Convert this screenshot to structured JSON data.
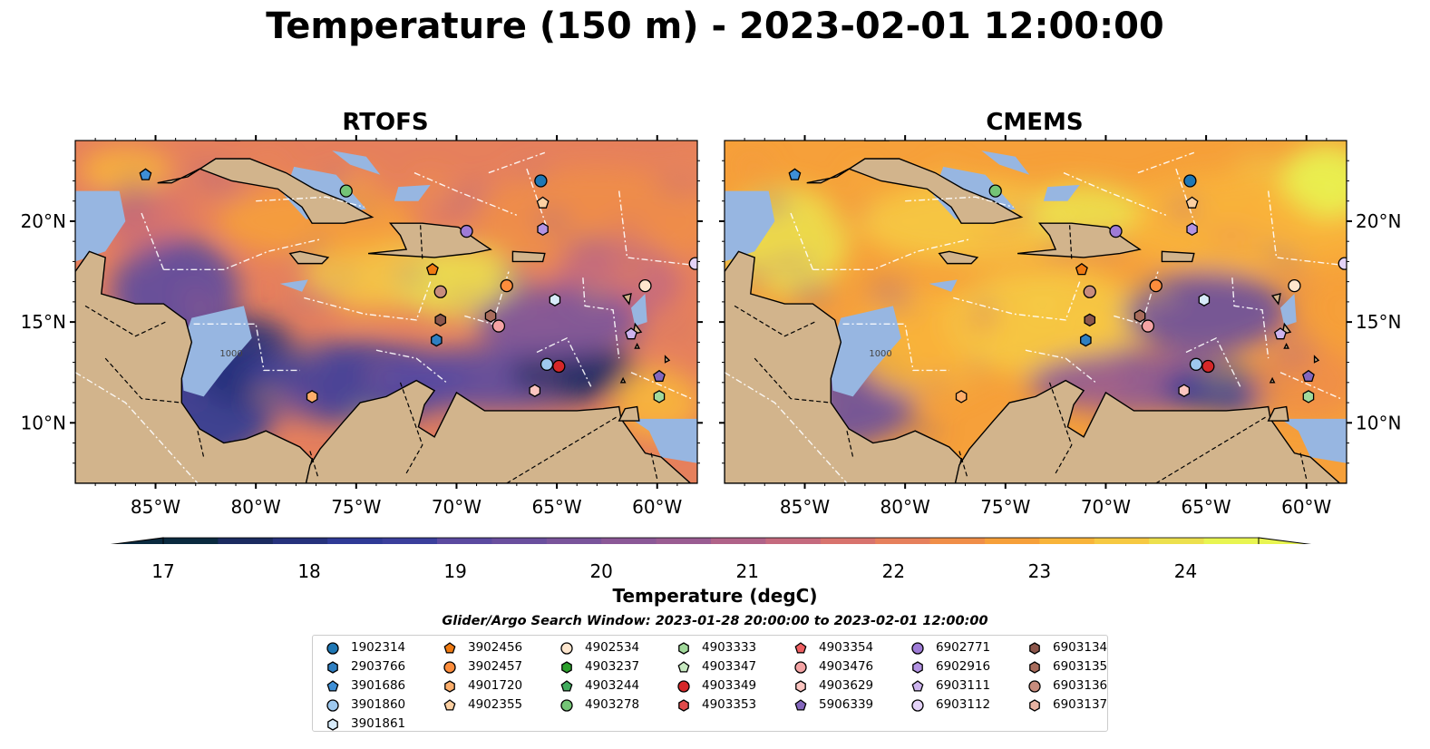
{
  "title": "Temperature (150 m) - 2023-02-01 12:00:00",
  "panels": [
    {
      "title": "RTOFS",
      "side": "left"
    },
    {
      "title": "CMEMS",
      "side": "right"
    }
  ],
  "map": {
    "lon_range": [
      -89,
      -58
    ],
    "lat_range": [
      7,
      24
    ],
    "lon_ticks": [
      "85°W",
      "80°W",
      "75°W",
      "70°W",
      "65°W",
      "60°W"
    ],
    "lat_ticks": [
      "20°N",
      "15°N",
      "10°N"
    ],
    "contour_label": "1000",
    "colors": {
      "land": "#d2b48c",
      "shelf": "#97b6e1",
      "eez_lines": "#ffffff",
      "borders": "#000000"
    }
  },
  "colorbar": {
    "label": "Temperature (degC)",
    "min": 17,
    "max": 24.5,
    "ticks": [
      "17",
      "18",
      "19",
      "20",
      "21",
      "22",
      "23",
      "24"
    ],
    "extend": "both",
    "colors": [
      "#0a2a3f",
      "#1b2b60",
      "#26327c",
      "#2f3a96",
      "#3b3f9c",
      "#5b4aa0",
      "#6a4f9e",
      "#7a549b",
      "#8b5897",
      "#9a5c92",
      "#b06288",
      "#c56a7e",
      "#d8736d",
      "#e6805c",
      "#f08e48",
      "#f6a03a",
      "#f8b43a",
      "#f6c942",
      "#ece04e",
      "#e8f551"
    ]
  },
  "search_window": "Glider/Argo Search Window: 2023-01-28 20:00:00 to 2023-02-01 12:00:00",
  "legend": [
    {
      "label": "1902314",
      "marker": "circle",
      "color": "#1f77b4"
    },
    {
      "label": "2903766",
      "marker": "hexagon",
      "color": "#2f7fc1"
    },
    {
      "label": "3901686",
      "marker": "pentagon",
      "color": "#3e8fd6"
    },
    {
      "label": "3901860",
      "marker": "circle",
      "color": "#9ec9ef"
    },
    {
      "label": "3901861",
      "marker": "hexagon",
      "color": "#d7ebfa"
    },
    {
      "label": "3902456",
      "marker": "pentagon",
      "color": "#ef7a12"
    },
    {
      "label": "3902457",
      "marker": "circle",
      "color": "#fd8d3c"
    },
    {
      "label": "4901720",
      "marker": "hexagon",
      "color": "#fdae6b"
    },
    {
      "label": "4902355",
      "marker": "pentagon",
      "color": "#fdd0a2"
    },
    {
      "label": "4902534",
      "marker": "circle",
      "color": "#fee6ce"
    },
    {
      "label": "4903237",
      "marker": "hexagon",
      "color": "#2ca02c"
    },
    {
      "label": "4903244",
      "marker": "pentagon",
      "color": "#41ab5d"
    },
    {
      "label": "4903278",
      "marker": "circle",
      "color": "#74c476"
    },
    {
      "label": "4903333",
      "marker": "hexagon",
      "color": "#a1d99b"
    },
    {
      "label": "4903347",
      "marker": "pentagon",
      "color": "#c7e9c0"
    },
    {
      "label": "4903349",
      "marker": "circle",
      "color": "#d62728"
    },
    {
      "label": "4903353",
      "marker": "hexagon",
      "color": "#e04a4a"
    },
    {
      "label": "4903354",
      "marker": "pentagon",
      "color": "#ef5f62"
    },
    {
      "label": "4903476",
      "marker": "circle",
      "color": "#f4a3a4"
    },
    {
      "label": "4903629",
      "marker": "hexagon",
      "color": "#fcc5c0"
    },
    {
      "label": "5906339",
      "marker": "pentagon",
      "color": "#8467bd"
    },
    {
      "label": "6902771",
      "marker": "circle",
      "color": "#9e7bd6"
    },
    {
      "label": "6902916",
      "marker": "hexagon",
      "color": "#b393e3"
    },
    {
      "label": "6903111",
      "marker": "pentagon",
      "color": "#cdb4ee"
    },
    {
      "label": "6903112",
      "marker": "circle",
      "color": "#e4d3f8"
    },
    {
      "label": "6903134",
      "marker": "hexagon",
      "color": "#8c564b"
    },
    {
      "label": "6903135",
      "marker": "hexagon",
      "color": "#a86c5c"
    },
    {
      "label": "6903136",
      "marker": "circle",
      "color": "#c88c7d"
    },
    {
      "label": "6903137",
      "marker": "hexagon",
      "color": "#e8b3a3"
    }
  ],
  "floats": [
    {
      "id": "1902314",
      "lon": -65.8,
      "lat": 22.0
    },
    {
      "id": "2903766",
      "lon": -71.0,
      "lat": 14.1
    },
    {
      "id": "3901686",
      "lon": -85.5,
      "lat": 22.3
    },
    {
      "id": "3901860",
      "lon": -65.5,
      "lat": 12.9
    },
    {
      "id": "3901861",
      "lon": -65.1,
      "lat": 16.1
    },
    {
      "id": "3902456",
      "lon": -71.2,
      "lat": 17.6
    },
    {
      "id": "3902457",
      "lon": -67.5,
      "lat": 16.8
    },
    {
      "id": "4901720",
      "lon": -77.2,
      "lat": 11.3
    },
    {
      "id": "4902355",
      "lon": -65.7,
      "lat": 20.9
    },
    {
      "id": "4902534",
      "lon": -60.6,
      "lat": 16.8
    },
    {
      "id": "4903333",
      "lon": -59.9,
      "lat": 11.3
    },
    {
      "id": "4903349",
      "lon": -64.9,
      "lat": 12.8
    },
    {
      "id": "4903278",
      "lon": -75.5,
      "lat": 21.5
    },
    {
      "id": "4903629",
      "lon": -66.1,
      "lat": 11.6
    },
    {
      "id": "4903476",
      "lon": -67.9,
      "lat": 14.8
    },
    {
      "id": "6902771",
      "lon": -69.5,
      "lat": 19.5
    },
    {
      "id": "6902916",
      "lon": -65.7,
      "lat": 19.6
    },
    {
      "id": "6903111",
      "lon": -61.3,
      "lat": 14.4
    },
    {
      "id": "6903112",
      "lon": -58.1,
      "lat": 17.9
    },
    {
      "id": "6903134",
      "lon": -70.8,
      "lat": 15.1
    },
    {
      "id": "6903135",
      "lon": -68.3,
      "lat": 15.3
    },
    {
      "id": "6903136",
      "lon": -70.8,
      "lat": 16.5
    },
    {
      "id": "5906339",
      "lon": -59.9,
      "lat": 12.3
    }
  ]
}
